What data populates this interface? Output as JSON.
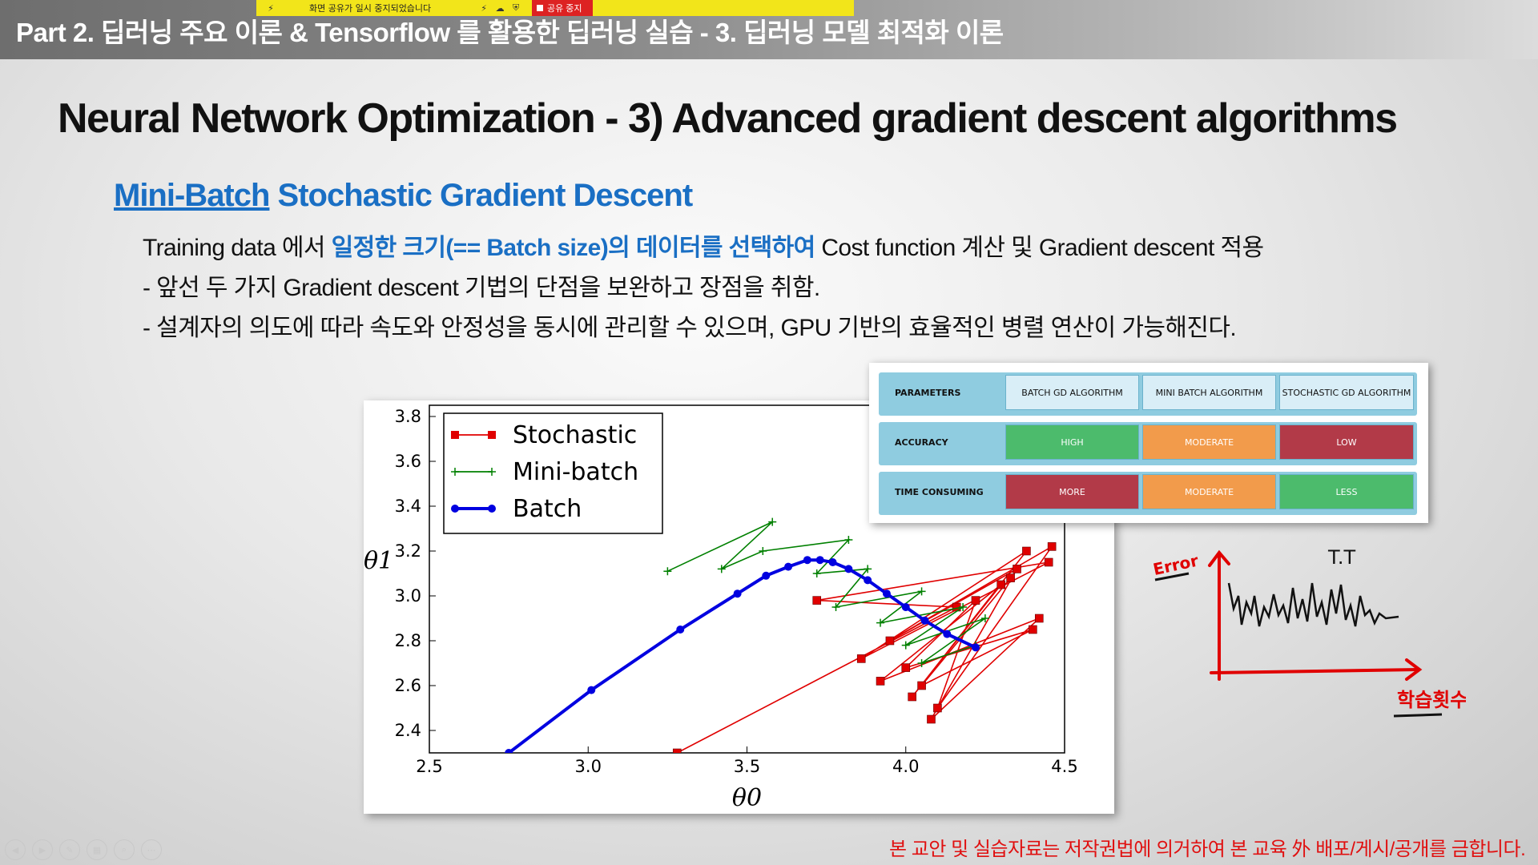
{
  "header": {
    "part_title": "Part 2. 딥러닝 주요 이론 & Tensorflow 를 활용한 딥러닝 실습 - 3. 딥러닝 모델 최적화 이론",
    "share_notice": "화면 공유가 일시 중지되었습니다",
    "stop_share_label": "공유 중지"
  },
  "slide": {
    "title": "Neural Network Optimization  -  3) Advanced gradient descent algorithms",
    "section_title_underlined": "Mini-Batch",
    "section_title_rest": " Stochastic Gradient Descent",
    "line1_a": "Training data 에서 ",
    "line1_hl": "일정한 크기(== Batch size)의 데이터를 선택하여",
    "line1_b": " Cost function 계산 및 Gradient descent 적용",
    "line2": "- 앞선 두 가지 Gradient descent 기법의 단점을 보완하고 장점을 취함.",
    "line3": "- 설계자의 의도에 따라 속도와 안정성을 동시에 관리할 수 있으며, GPU 기반의 효율적인 병렬 연산이 가능해진다."
  },
  "comparison_table": {
    "header": [
      "PARAMETERS",
      "BATCH GD ALGORITHM",
      "MINI BATCH ALGORITHM",
      "STOCHASTIC GD ALGORITHM"
    ],
    "rows": [
      {
        "label": "ACCURACY",
        "values": [
          "HIGH",
          "MODERATE",
          "LOW"
        ]
      },
      {
        "label": "TIME CONSUMING",
        "values": [
          "MORE",
          "MODERATE",
          "LESS"
        ]
      }
    ],
    "colors": {
      "green": "#4cbb6c",
      "orange": "#f29b4b",
      "red": "#b23a48",
      "header_bg": "#8fcce0",
      "header_cell": "#d9eef7"
    }
  },
  "chart_data": {
    "type": "line",
    "xlabel": "θ0",
    "ylabel": "θ1",
    "xlim": [
      2.5,
      4.5
    ],
    "ylim": [
      2.3,
      3.85
    ],
    "x_ticks": [
      "2.5",
      "3.0",
      "3.5",
      "4.0",
      "4.5"
    ],
    "y_ticks": [
      "2.4",
      "2.6",
      "2.8",
      "3.0",
      "3.2",
      "3.4",
      "3.6",
      "3.8"
    ],
    "legend_position": "top-left",
    "series": [
      {
        "name": "Stochastic",
        "color": "#e00000",
        "marker": "square",
        "x": [
          3.28,
          4.16,
          3.72,
          4.45,
          3.86,
          4.38,
          4.02,
          4.3,
          3.92,
          4.42,
          4.08,
          4.35,
          3.95,
          4.46,
          4.1,
          4.22,
          4.0,
          4.4,
          4.05,
          4.33
        ],
        "y": [
          2.3,
          2.95,
          2.98,
          3.15,
          2.72,
          3.2,
          2.55,
          3.05,
          2.62,
          2.9,
          2.45,
          3.12,
          2.8,
          3.22,
          2.5,
          2.98,
          2.68,
          2.85,
          2.6,
          3.08
        ]
      },
      {
        "name": "Mini-batch",
        "color": "#008000",
        "marker": "plus",
        "x": [
          3.25,
          3.58,
          3.42,
          3.55,
          3.82,
          3.72,
          3.88,
          3.78,
          4.05,
          3.92,
          4.18,
          4.0,
          4.25,
          4.05,
          4.22
        ],
        "y": [
          3.11,
          3.33,
          3.12,
          3.2,
          3.25,
          3.1,
          3.12,
          2.95,
          3.02,
          2.88,
          2.95,
          2.78,
          2.9,
          2.7,
          2.78
        ]
      },
      {
        "name": "Batch",
        "color": "#0000e0",
        "marker": "circle",
        "x": [
          2.75,
          3.01,
          3.29,
          3.47,
          3.56,
          3.63,
          3.69,
          3.73,
          3.77,
          3.82,
          3.88,
          3.94,
          4.0,
          4.06,
          4.13,
          4.22
        ],
        "y": [
          2.3,
          2.58,
          2.85,
          3.01,
          3.09,
          3.13,
          3.16,
          3.16,
          3.15,
          3.12,
          3.07,
          3.01,
          2.95,
          2.89,
          2.83,
          2.77
        ]
      }
    ]
  },
  "annotation": {
    "top_label": "T.T",
    "y_axis_label": "Error",
    "x_axis_label": "학습횟수",
    "ink_color": "#e00000"
  },
  "footer": {
    "copyright": "본 교안 및 실습자료는 저작권법에 의거하여 본 교육 外 배포/게시/공개를 금합니다."
  },
  "controls": [
    "prev-icon",
    "next-icon",
    "pen-icon",
    "slides-icon",
    "zoom-icon",
    "more-icon"
  ]
}
